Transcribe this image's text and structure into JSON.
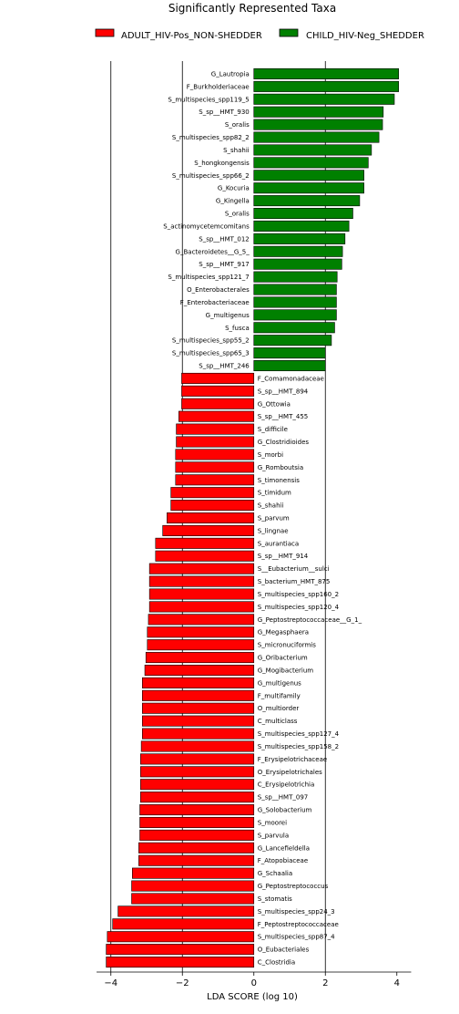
{
  "chart_data": {
    "type": "bar",
    "orientation": "horizontal",
    "title": "Significantly Represented Taxa",
    "xlabel": "LDA SCORE (log 10)",
    "ylabel": "",
    "xlim": [
      -4.4,
      4.4
    ],
    "xticks": [
      -4,
      -2,
      0,
      2,
      4
    ],
    "grid": "vertical lines at -4, -2, 2",
    "legend_position": "top",
    "series": [
      {
        "name": "ADULT_HIV-Pos_NON-SHEDDER",
        "color": "#ff0000"
      },
      {
        "name": "CHILD_HIV-Neg_SHEDDER",
        "color": "#008000"
      }
    ],
    "categories": [
      "G_Lautropia",
      "F_Burkholderiaceae",
      "S_multispecies_spp119_5",
      "S_sp__HMT_930",
      "S_oralis",
      "S_multispecies_spp82_2",
      "S_shahii",
      "S_hongkongensis",
      "S_multispecies_spp66_2",
      "G_Kocuria",
      "G_Kingella",
      "S_oralis",
      "S_actinomycetemcomitans",
      "S_sp__HMT_012",
      "G_Bacteroidetes__G_5_",
      "S_sp__HMT_917",
      "S_multispecies_spp121_7",
      "O_Enterobacterales",
      "F_Enterobacteriaceae",
      "G_multigenus",
      "S_fusca",
      "S_multispecies_spp55_2",
      "S_multispecies_spp65_3",
      "S_sp__HMT_246",
      "F_Comamonadaceae",
      "S_sp__HMT_894",
      "G_Ottowia",
      "S_sp__HMT_455",
      "S_difficile",
      "G_Clostridioides",
      "S_morbi",
      "G_Romboutsia",
      "S_timonensis",
      "S_timidum",
      "S_shahii",
      "S_parvum",
      "S_lingnae",
      "S_aurantiaca",
      "S_sp__HMT_914",
      "S__Eubacterium__sulci",
      "S_bacterium_HMT_875",
      "S_multispecies_spp160_2",
      "S_multispecies_spp120_4",
      "G_Peptostreptococcaceae__G_1_",
      "G_Megasphaera",
      "S_micronuciformis",
      "G_Oribacterium",
      "G_Mogibacterium",
      "G_multigenus",
      "F_multifamily",
      "O_multiorder",
      "C_multiclass",
      "S_multispecies_spp127_4",
      "S_multispecies_spp158_2",
      "F_Erysipelotrichaceae",
      "O_Erysipelotrichales",
      "C_Erysipelotrichia",
      "S_sp__HMT_097",
      "G_Solobacterium",
      "S_moorei",
      "S_parvula",
      "G_Lancefieldella",
      "F_Atopobiaceae",
      "G_Schaalia",
      "G_Peptostreptococcus",
      "S_stomatis",
      "S_multispecies_spp24_3",
      "F_Peptostreptococcaceae",
      "S_multispecies_spp87_4",
      "O_Eubacteriales",
      "C_Clostridia"
    ],
    "values": [
      4.05,
      4.05,
      3.93,
      3.62,
      3.6,
      3.5,
      3.29,
      3.2,
      3.08,
      3.08,
      2.96,
      2.77,
      2.66,
      2.55,
      2.48,
      2.46,
      2.33,
      2.31,
      2.31,
      2.31,
      2.26,
      2.17,
      2.0,
      2.0,
      -2.02,
      -2.02,
      -2.02,
      -2.1,
      -2.17,
      -2.17,
      -2.19,
      -2.19,
      -2.19,
      -2.32,
      -2.32,
      -2.43,
      -2.55,
      -2.75,
      -2.75,
      -2.92,
      -2.92,
      -2.92,
      -2.92,
      -2.95,
      -2.98,
      -2.98,
      -3.02,
      -3.05,
      -3.12,
      -3.12,
      -3.12,
      -3.12,
      -3.12,
      -3.15,
      -3.17,
      -3.17,
      -3.17,
      -3.17,
      -3.19,
      -3.19,
      -3.19,
      -3.22,
      -3.22,
      -3.4,
      -3.42,
      -3.42,
      -3.8,
      -3.95,
      -4.1,
      -4.13,
      -4.13
    ],
    "series_index": [
      1,
      1,
      1,
      1,
      1,
      1,
      1,
      1,
      1,
      1,
      1,
      1,
      1,
      1,
      1,
      1,
      1,
      1,
      1,
      1,
      1,
      1,
      1,
      1,
      0,
      0,
      0,
      0,
      0,
      0,
      0,
      0,
      0,
      0,
      0,
      0,
      0,
      0,
      0,
      0,
      0,
      0,
      0,
      0,
      0,
      0,
      0,
      0,
      0,
      0,
      0,
      0,
      0,
      0,
      0,
      0,
      0,
      0,
      0,
      0,
      0,
      0,
      0,
      0,
      0,
      0,
      0,
      0,
      0,
      0,
      0
    ]
  }
}
